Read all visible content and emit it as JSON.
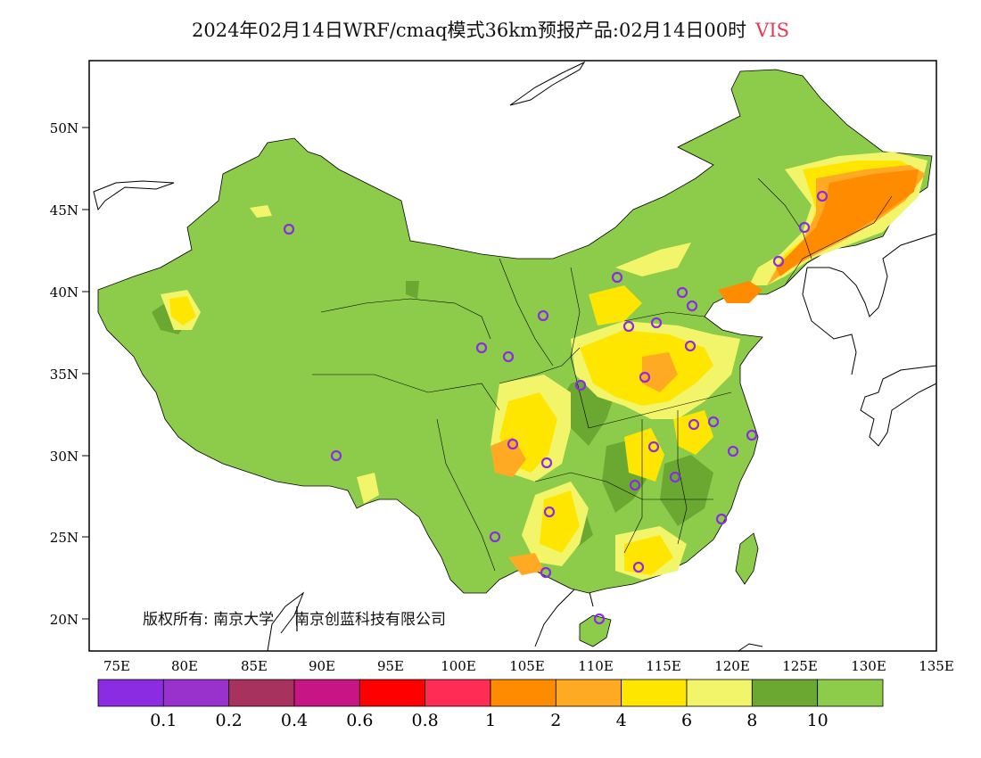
{
  "title": {
    "text": "2024年02月14日WRF/cmaq模式36km预报产品:02月14日00时",
    "variable": "VIS"
  },
  "lat_labels": [
    "50N",
    "45N",
    "40N",
    "35N",
    "30N",
    "25N",
    "20N"
  ],
  "lon_labels": [
    "75E",
    "80E",
    "85E",
    "90E",
    "95E",
    "100E",
    "105E",
    "110E",
    "115E",
    "120E",
    "125E",
    "130E",
    "135E"
  ],
  "copyright": {
    "prefix": "版权所有:",
    "org1": "南京大学",
    "org2": "南京创蓝科技有限公司"
  },
  "colorbar": {
    "colors": [
      "#8b2be2",
      "#9932cc",
      "#a8325e",
      "#c71585",
      "#ff0000",
      "#ff2d55",
      "#ff8c00",
      "#ffaa22",
      "#ffe600",
      "#f2f56a",
      "#6aa832",
      "#8ccc4a"
    ],
    "labels": [
      "0.1",
      "0.2",
      "0.4",
      "0.6",
      "0.8",
      "1",
      "2",
      "4",
      "6",
      "8",
      "10"
    ]
  },
  "legend_colors": {
    "land_default": "#8ccc4a",
    "dark_green": "#6aa832",
    "light_yellow": "#f2f56a",
    "yellow": "#ffe600",
    "orange_light": "#ffaa22",
    "orange": "#ff8c00",
    "marker": "#8b2be2"
  },
  "stations_count_note": ""
}
